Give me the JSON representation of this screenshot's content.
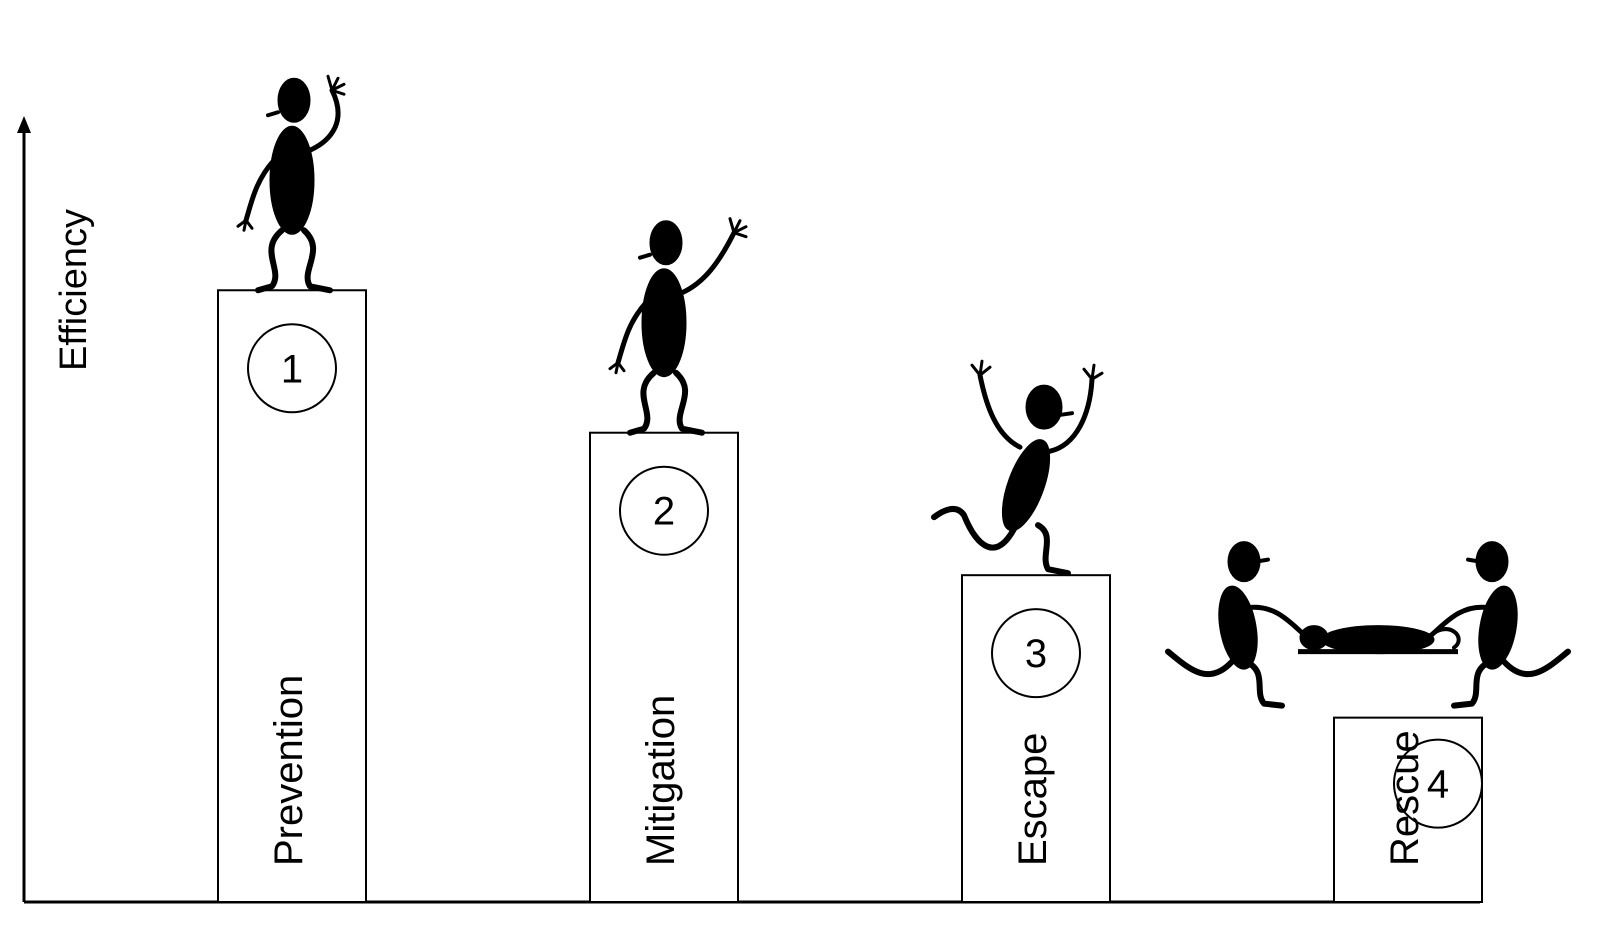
{
  "axis": {
    "y_label": "Efficiency"
  },
  "steps": [
    {
      "number": "1",
      "label": "Prevention",
      "level": 0.73,
      "figure": "standing-waving-figure"
    },
    {
      "number": "2",
      "label": "Mitigation",
      "level": 0.56,
      "figure": "standing-waving-figure"
    },
    {
      "number": "3",
      "label": "Escape",
      "level": 0.39,
      "figure": "jumping-figure"
    },
    {
      "number": "4",
      "label": "Rescue",
      "level": 0.22,
      "figure": "rescuers-with-stretcher-figure"
    }
  ],
  "colors": {
    "ink": "#000000",
    "background": "#ffffff"
  }
}
